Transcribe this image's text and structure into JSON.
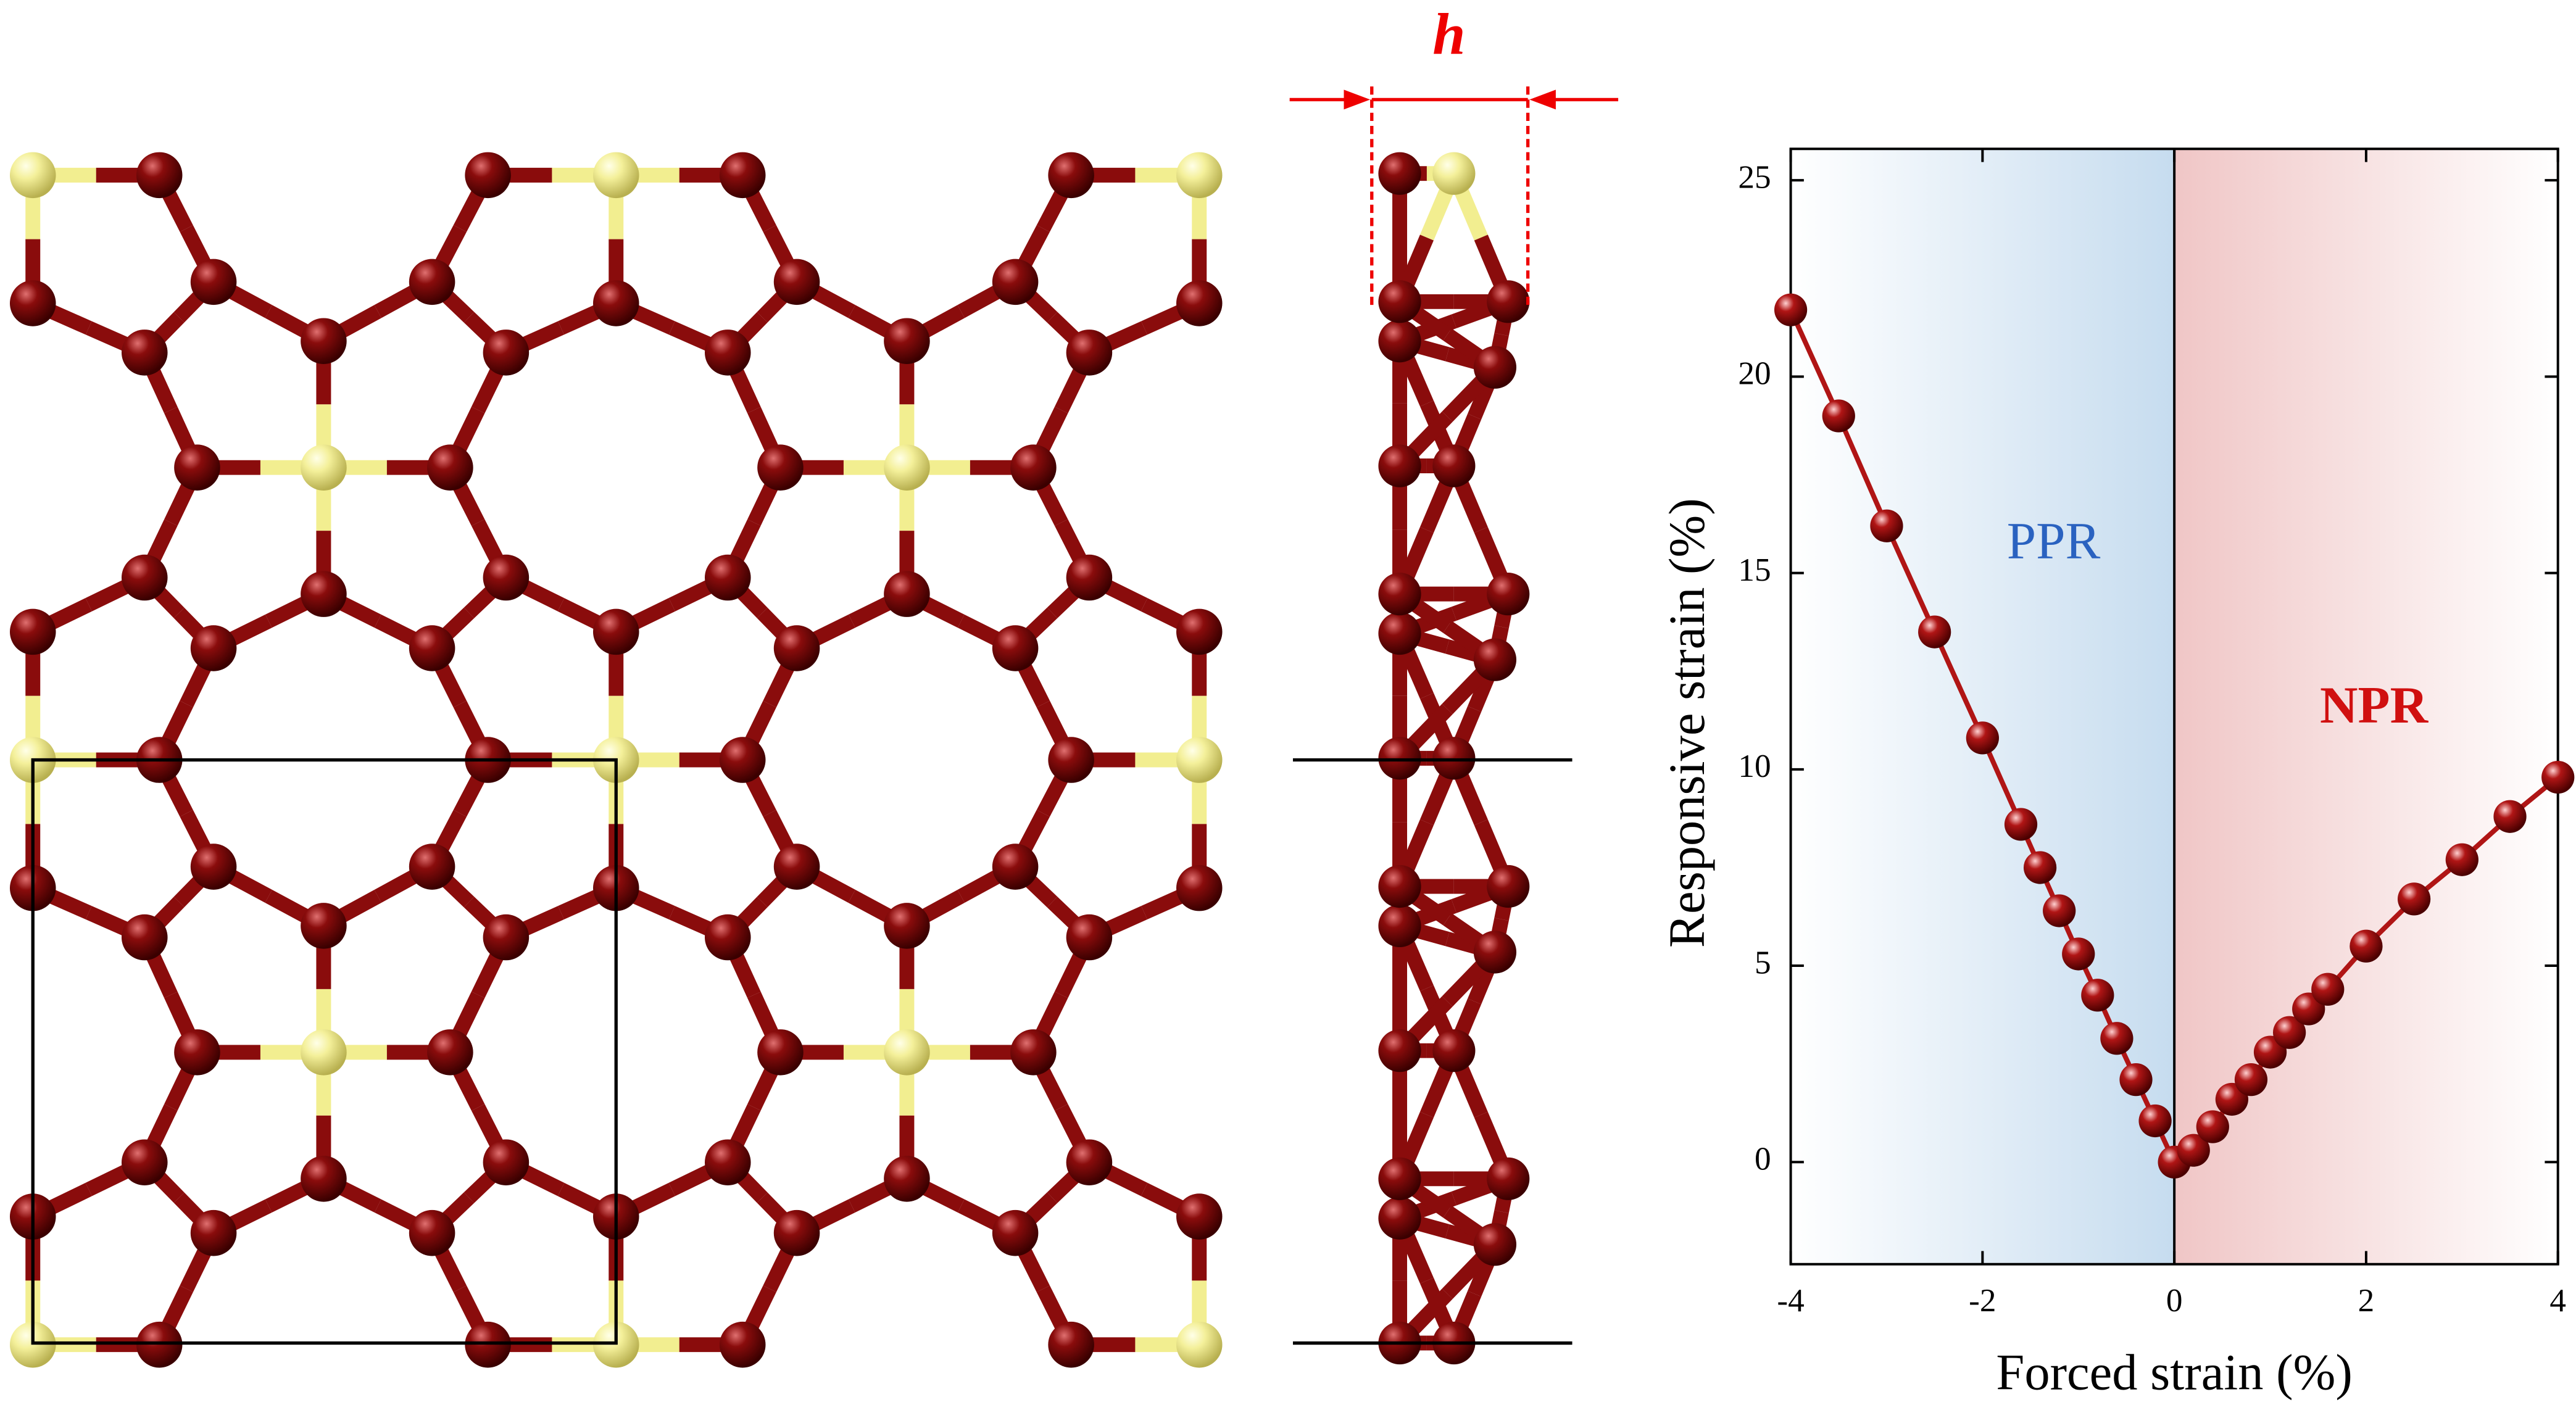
{
  "chart_data": {
    "type": "line",
    "xlabel": "Forced strain (%)",
    "ylabel": "Responsive strain (%)",
    "x": [
      -4,
      -3.5,
      -3,
      -2.5,
      -2,
      -1.6,
      -1.4,
      -1.2,
      -1,
      -0.8,
      -0.6,
      -0.4,
      -0.2,
      0,
      0.2,
      0.4,
      0.6,
      0.8,
      1,
      1.2,
      1.4,
      1.6,
      2,
      2.5,
      3,
      3.5,
      4
    ],
    "series": [
      {
        "color": "#b01515",
        "values": [
          21.7,
          19,
          16.2,
          13.5,
          10.8,
          8.6,
          7.5,
          6.4,
          5.3,
          4.25,
          3.15,
          2.1,
          1.05,
          0,
          0.3,
          0.9,
          1.6,
          2.1,
          2.8,
          3.3,
          3.9,
          4.4,
          5.5,
          6.7,
          7.7,
          8.8,
          9.8
        ]
      }
    ],
    "xlim": [
      -4,
      4
    ],
    "xticks": [
      -4,
      -2,
      0,
      2,
      4
    ],
    "ylim": [
      -2.6,
      25.8
    ],
    "yticks": [
      0,
      5,
      10,
      15,
      20,
      25
    ],
    "region_colors": [
      "#c6dcef",
      "#f0c6c6"
    ],
    "zero_line": true,
    "annotations": [
      {
        "text": "PPR",
        "color": "#2a62c0",
        "bold": false
      },
      {
        "text": "NPR",
        "color": "#d01010",
        "bold": true
      }
    ]
  },
  "side_view": {
    "label": "h"
  }
}
